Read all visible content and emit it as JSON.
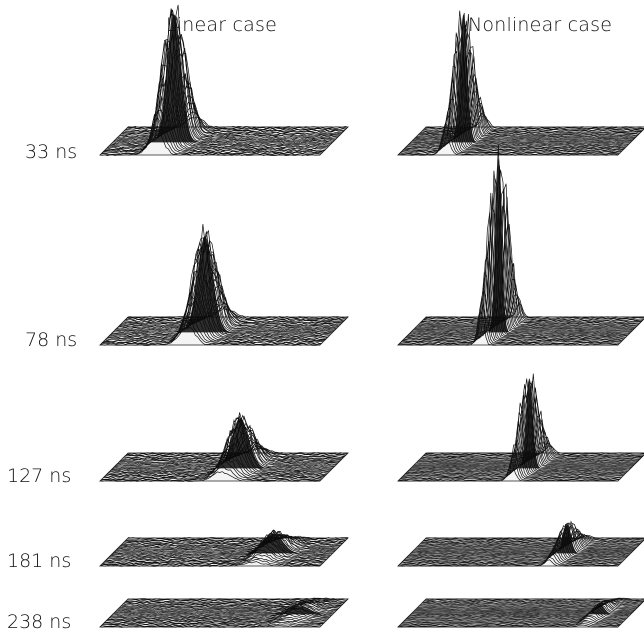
{
  "columns": [
    "Linear case",
    "Nonlinear case"
  ],
  "rows": [
    "33 ns",
    "78 ns",
    "127 ns",
    "181 ns",
    "238 ns"
  ],
  "panels": [
    [
      {
        "peak": 0.28,
        "height": 1.0,
        "width": 0.045,
        "rough": 0.55
      },
      {
        "peak": 0.42,
        "height": 0.55,
        "width": 0.05,
        "rough": 0.5
      },
      {
        "peak": 0.58,
        "height": 0.42,
        "width": 0.055,
        "rough": 0.45
      },
      {
        "peak": 0.73,
        "height": 0.3,
        "width": 0.06,
        "rough": 0.45
      },
      {
        "peak": 0.85,
        "height": 0.18,
        "width": 0.065,
        "rough": 0.4
      }
    ],
    [
      {
        "peak": 0.24,
        "height": 1.0,
        "width": 0.025,
        "rough": 0.35
      },
      {
        "peak": 0.4,
        "height": 1.0,
        "width": 0.02,
        "rough": 0.3
      },
      {
        "peak": 0.54,
        "height": 0.75,
        "width": 0.022,
        "rough": 0.25
      },
      {
        "peak": 0.71,
        "height": 0.45,
        "width": 0.025,
        "rough": 0.25
      },
      {
        "peak": 0.86,
        "height": 0.22,
        "width": 0.03,
        "rough": 0.2
      }
    ]
  ]
}
